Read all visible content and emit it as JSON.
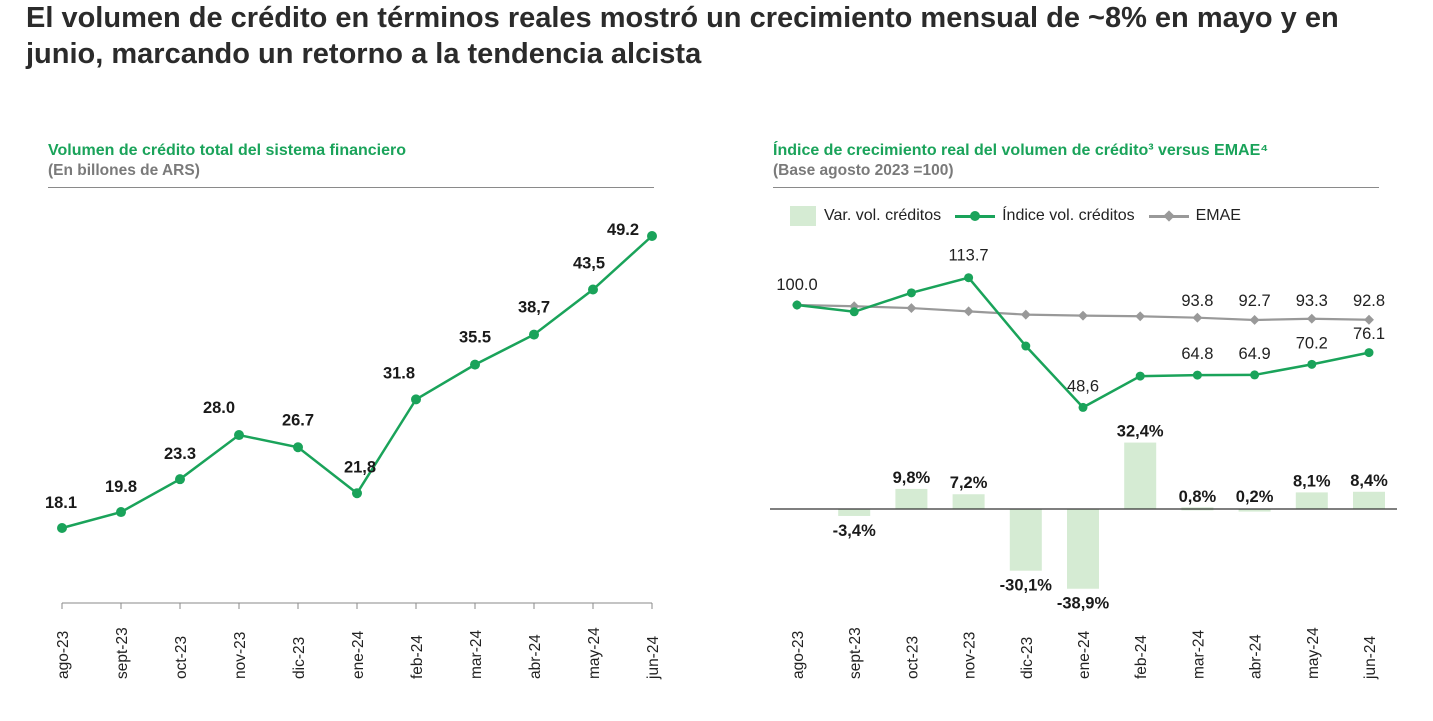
{
  "page": {
    "title": "El volumen de crédito en términos reales mostró un crecimiento mensual de ~8% en mayo y en junio, marcando un retorno a la tendencia alcista"
  },
  "colors": {
    "green": "#1aa35a",
    "bar_green": "#d5ebd3",
    "gray_line": "#999999"
  },
  "chart_data": [
    {
      "type": "line",
      "title": "Volumen de crédito total del sistema financiero",
      "subtitle": "(En billones de ARS)",
      "categories": [
        "ago-23",
        "sept-23",
        "oct-23",
        "nov-23",
        "dic-23",
        "ene-24",
        "feb-24",
        "mar-24",
        "abr-24",
        "may-24",
        "jun-24"
      ],
      "series": [
        {
          "values": [
            18.1,
            19.8,
            23.3,
            28.0,
            26.7,
            21.8,
            31.8,
            35.5,
            38.7,
            43.5,
            49.2
          ],
          "labels": [
            "18.1",
            "19.8",
            "23.3",
            "28.0",
            "26.7",
            "21,8",
            "31.8",
            "35.5",
            "38,7",
            "43,5",
            "49.2"
          ]
        }
      ],
      "ylim": [
        14,
        50
      ],
      "grid": false,
      "legend": "none"
    },
    {
      "type": "line",
      "title": "Índice de crecimiento real del volumen de crédito³ versus EMAE⁴",
      "subtitle": "(Base agosto 2023 =100)",
      "categories": [
        "ago-23",
        "sept-23",
        "oct-23",
        "nov-23",
        "dic-23",
        "ene-24",
        "feb-24",
        "mar-24",
        "abr-24",
        "may-24",
        "jun-24"
      ],
      "legend": "top-left",
      "legend_entries": [
        "Var. vol. créditos",
        "Índice vol. créditos",
        "EMAE"
      ],
      "series": [
        {
          "name": "Índice vol. créditos",
          "type": "line",
          "values": [
            100.0,
            96.6,
            106.1,
            113.7,
            79.4,
            48.6,
            64.3,
            64.8,
            64.9,
            70.2,
            76.1
          ],
          "labels": {
            "0": "100.0",
            "3": "113.7",
            "5": "48,6",
            "7": "64.8",
            "8": "64.9",
            "9": "70.2",
            "10": "76.1"
          }
        },
        {
          "name": "EMAE",
          "type": "line",
          "values": [
            100.0,
            99.4,
            98.5,
            96.9,
            95.3,
            94.8,
            94.5,
            93.8,
            92.7,
            93.3,
            92.8
          ],
          "labels": {
            "7": "93.8",
            "8": "92.7",
            "9": "93.3",
            "10": "92.8"
          }
        },
        {
          "name": "Var. vol. créditos",
          "type": "bar",
          "values": [
            null,
            -3.4,
            9.8,
            7.2,
            -30.1,
            -38.9,
            32.4,
            0.8,
            0.2,
            8.1,
            8.4
          ],
          "labels": [
            "",
            "-3,4%",
            "9,8%",
            "7,2%",
            "-30,1%",
            "-38,9%",
            "32,4%",
            "0,8%",
            "0,2%",
            "8,1%",
            "8,4%"
          ]
        }
      ],
      "ylim_index": [
        40,
        125
      ],
      "ylim_pct": [
        -42,
        36
      ],
      "grid": false
    }
  ]
}
